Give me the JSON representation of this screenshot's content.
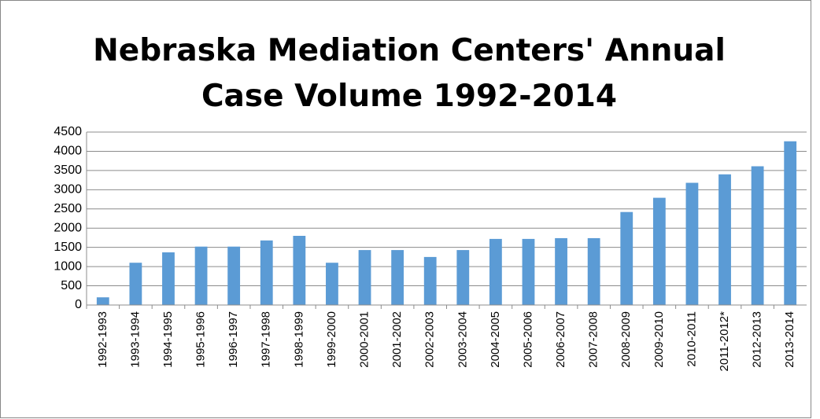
{
  "chart_data": {
    "type": "bar",
    "title": "Nebraska Mediation Centers' Annual Case Volume 1992-2014",
    "categories": [
      "1992-1993",
      "1993-1994",
      "1994-1995",
      "1995-1996",
      "1996-1997",
      "1997-1998",
      "1998-1999",
      "1999-2000",
      "2000-2001",
      "2001-2002",
      "2002-2003",
      "2003-2004",
      "2004-2005",
      "2005-2006",
      "2006-2007",
      "2007-2008",
      "2008-2009",
      "2009-2010",
      "2010-2011",
      "2011-2012*",
      "2012-2013",
      "2013-2014"
    ],
    "values": [
      200,
      1100,
      1370,
      1520,
      1520,
      1680,
      1800,
      1100,
      1430,
      1430,
      1250,
      1430,
      1720,
      1720,
      1740,
      1740,
      2420,
      2790,
      3180,
      3400,
      3610,
      4260
    ],
    "color": "#5b9bd5",
    "ylim": [
      0,
      4500
    ],
    "yticks": [
      0,
      500,
      1000,
      1500,
      2000,
      2500,
      3000,
      3500,
      4000,
      4500
    ],
    "grid": true
  }
}
